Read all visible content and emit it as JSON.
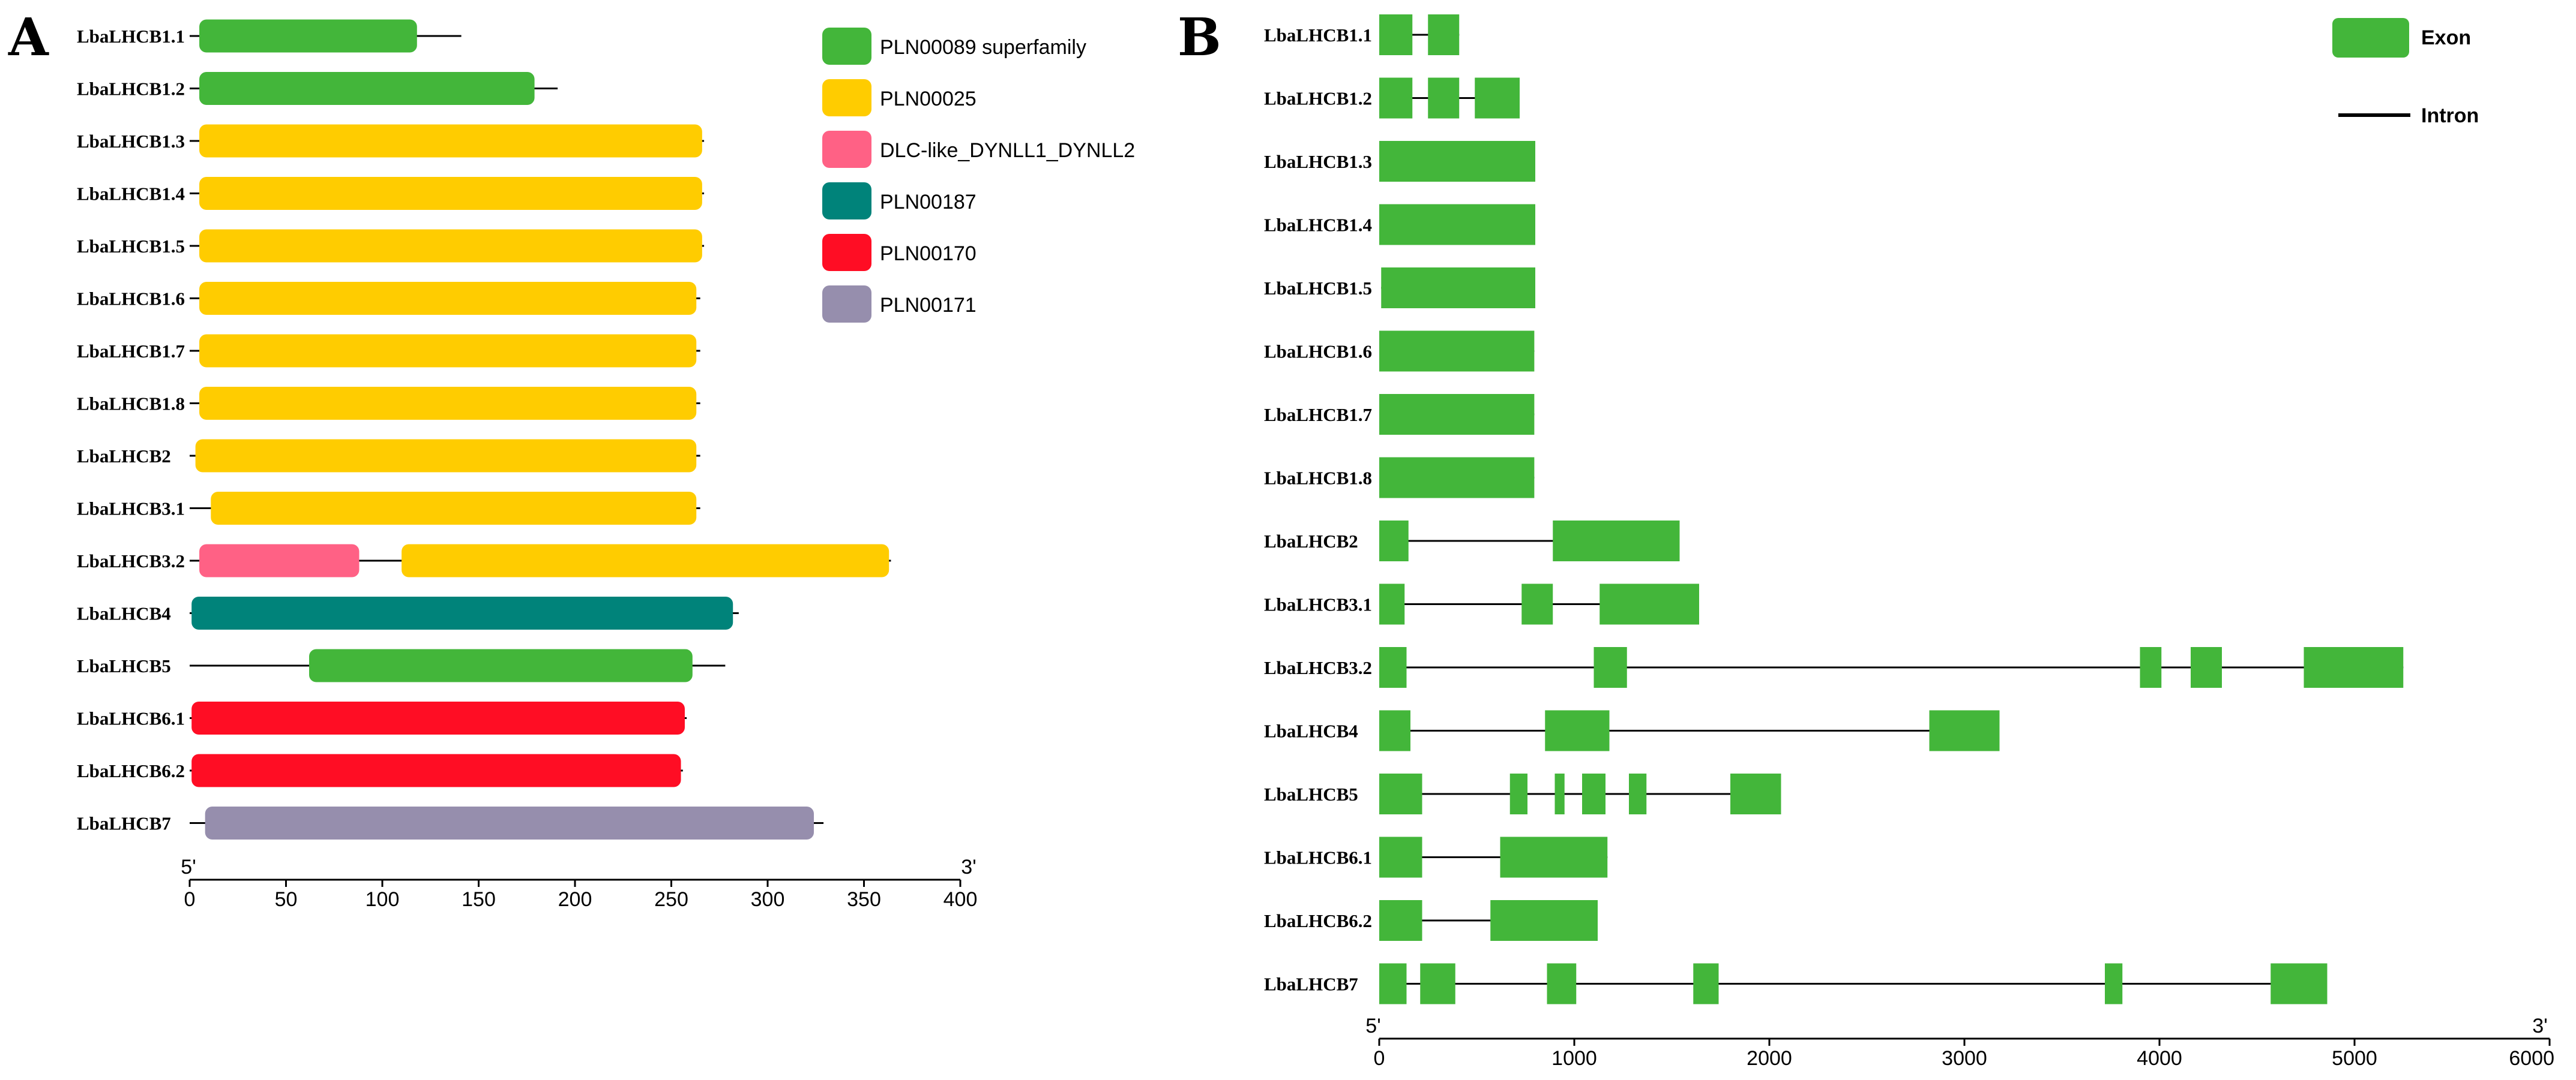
{
  "colors": {
    "PLN00089 superfamily": "#43b63a",
    "PLN00025": "#ffcc00",
    "DLC-like_DYNLL1_DYNLL2": "#ff6185",
    "PLN00187": "#00837a",
    "PLN00170": "#ff0d24",
    "PLN00171": "#968ead",
    "exon": "#43b63a",
    "line": "#000000"
  },
  "chart_data": [
    {
      "type": "bar",
      "panel": "A",
      "axis": {
        "range": [
          0,
          400
        ],
        "ticks": [
          0,
          50,
          100,
          150,
          200,
          250,
          300,
          350,
          400
        ],
        "start_label": "5'",
        "end_label": "3'"
      },
      "legend": {
        "placement": "top-right",
        "items": [
          {
            "label": "PLN00089 superfamily",
            "color_key": "PLN00089 superfamily"
          },
          {
            "label": "PLN00025",
            "color_key": "PLN00025"
          },
          {
            "label": "DLC-like_DYNLL1_DYNLL2",
            "color_key": "DLC-like_DYNLL1_DYNLL2"
          },
          {
            "label": "PLN00187",
            "color_key": "PLN00187"
          },
          {
            "label": "PLN00170",
            "color_key": "PLN00170"
          },
          {
            "label": "PLN00171",
            "color_key": "PLN00171"
          }
        ]
      },
      "genes": [
        {
          "name": "LbaLHCB1.1",
          "length": 141,
          "domains": [
            {
              "family": "PLN00089 superfamily",
              "start": 5,
              "end": 118
            }
          ]
        },
        {
          "name": "LbaLHCB1.2",
          "length": 191,
          "domains": [
            {
              "family": "PLN00089 superfamily",
              "start": 5,
              "end": 179
            }
          ]
        },
        {
          "name": "LbaLHCB1.3",
          "length": 267,
          "domains": [
            {
              "family": "PLN00025",
              "start": 5,
              "end": 266
            }
          ]
        },
        {
          "name": "LbaLHCB1.4",
          "length": 267,
          "domains": [
            {
              "family": "PLN00025",
              "start": 5,
              "end": 266
            }
          ]
        },
        {
          "name": "LbaLHCB1.5",
          "length": 267,
          "domains": [
            {
              "family": "PLN00025",
              "start": 5,
              "end": 266
            }
          ]
        },
        {
          "name": "LbaLHCB1.6",
          "length": 265,
          "domains": [
            {
              "family": "PLN00025",
              "start": 5,
              "end": 263
            }
          ]
        },
        {
          "name": "LbaLHCB1.7",
          "length": 265,
          "domains": [
            {
              "family": "PLN00025",
              "start": 5,
              "end": 263
            }
          ]
        },
        {
          "name": "LbaLHCB1.8",
          "length": 265,
          "domains": [
            {
              "family": "PLN00025",
              "start": 5,
              "end": 263
            }
          ]
        },
        {
          "name": "LbaLHCB2",
          "length": 265,
          "domains": [
            {
              "family": "PLN00025",
              "start": 3,
              "end": 263
            }
          ]
        },
        {
          "name": "LbaLHCB3.1",
          "length": 265,
          "domains": [
            {
              "family": "PLN00025",
              "start": 11,
              "end": 263
            }
          ]
        },
        {
          "name": "LbaLHCB3.2",
          "length": 364,
          "domains": [
            {
              "family": "DLC-like_DYNLL1_DYNLL2",
              "start": 5,
              "end": 88
            },
            {
              "family": "PLN00025",
              "start": 110,
              "end": 363
            }
          ]
        },
        {
          "name": "LbaLHCB4",
          "length": 285,
          "domains": [
            {
              "family": "PLN00187",
              "start": 1,
              "end": 282
            }
          ]
        },
        {
          "name": "LbaLHCB5",
          "length": 278,
          "domains": [
            {
              "family": "PLN00089 superfamily",
              "start": 62,
              "end": 261
            }
          ]
        },
        {
          "name": "LbaLHCB6.1",
          "length": 258,
          "domains": [
            {
              "family": "PLN00170",
              "start": 1,
              "end": 257
            }
          ]
        },
        {
          "name": "LbaLHCB6.2",
          "length": 256,
          "domains": [
            {
              "family": "PLN00170",
              "start": 1,
              "end": 255
            }
          ]
        },
        {
          "name": "LbaLHCB7",
          "length": 329,
          "domains": [
            {
              "family": "PLN00171",
              "start": 8,
              "end": 324
            }
          ]
        }
      ]
    },
    {
      "type": "bar",
      "panel": "B",
      "axis": {
        "range": [
          0,
          6000
        ],
        "ticks": [
          0,
          1000,
          2000,
          3000,
          4000,
          5000,
          6000
        ],
        "start_label": "5'",
        "end_label": "3'"
      },
      "legend": {
        "placement": "top-right",
        "items": [
          {
            "label": "Exon",
            "kind": "box"
          },
          {
            "label": "Intron",
            "kind": "line"
          }
        ]
      },
      "genes": [
        {
          "name": "LbaLHCB1.1",
          "length": 410,
          "exons": [
            [
              0,
              170
            ],
            [
              250,
              410
            ]
          ]
        },
        {
          "name": "LbaLHCB1.2",
          "length": 720,
          "exons": [
            [
              0,
              170
            ],
            [
              250,
              410
            ],
            [
              490,
              720
            ]
          ]
        },
        {
          "name": "LbaLHCB1.3",
          "length": 800,
          "exons": [
            [
              0,
              800
            ]
          ]
        },
        {
          "name": "LbaLHCB1.4",
          "length": 800,
          "exons": [
            [
              0,
              800
            ]
          ]
        },
        {
          "name": "LbaLHCB1.5",
          "length": 800,
          "exons": [
            [
              10,
              800
            ]
          ]
        },
        {
          "name": "LbaLHCB1.6",
          "length": 795,
          "exons": [
            [
              0,
              795
            ]
          ]
        },
        {
          "name": "LbaLHCB1.7",
          "length": 795,
          "exons": [
            [
              0,
              795
            ]
          ]
        },
        {
          "name": "LbaLHCB1.8",
          "length": 795,
          "exons": [
            [
              0,
              795
            ]
          ]
        },
        {
          "name": "LbaLHCB2",
          "length": 1540,
          "exons": [
            [
              0,
              150
            ],
            [
              890,
              1540
            ]
          ]
        },
        {
          "name": "LbaLHCB3.1",
          "length": 1640,
          "exons": [
            [
              0,
              130
            ],
            [
              730,
              890
            ],
            [
              1130,
              1640
            ]
          ]
        },
        {
          "name": "LbaLHCB3.2",
          "length": 5250,
          "exons": [
            [
              0,
              140
            ],
            [
              1100,
              1270
            ],
            [
              3900,
              4010
            ],
            [
              4160,
              4320
            ],
            [
              4740,
              5250
            ]
          ]
        },
        {
          "name": "LbaLHCB4",
          "length": 3180,
          "exons": [
            [
              0,
              160
            ],
            [
              850,
              1180
            ],
            [
              2820,
              3180
            ]
          ]
        },
        {
          "name": "LbaLHCB5",
          "length": 2060,
          "exons": [
            [
              0,
              220
            ],
            [
              670,
              760
            ],
            [
              900,
              950
            ],
            [
              1040,
              1160
            ],
            [
              1280,
              1370
            ],
            [
              1800,
              2060
            ]
          ]
        },
        {
          "name": "LbaLHCB6.1",
          "length": 1170,
          "exons": [
            [
              0,
              220
            ],
            [
              620,
              1170
            ]
          ]
        },
        {
          "name": "LbaLHCB6.2",
          "length": 1120,
          "exons": [
            [
              0,
              220
            ],
            [
              570,
              1120
            ]
          ]
        },
        {
          "name": "LbaLHCB7",
          "length": 4860,
          "exons": [
            [
              0,
              140
            ],
            [
              210,
              390
            ],
            [
              860,
              1010
            ],
            [
              1610,
              1740
            ],
            [
              3720,
              3810
            ],
            [
              4570,
              4860
            ]
          ]
        }
      ]
    }
  ]
}
